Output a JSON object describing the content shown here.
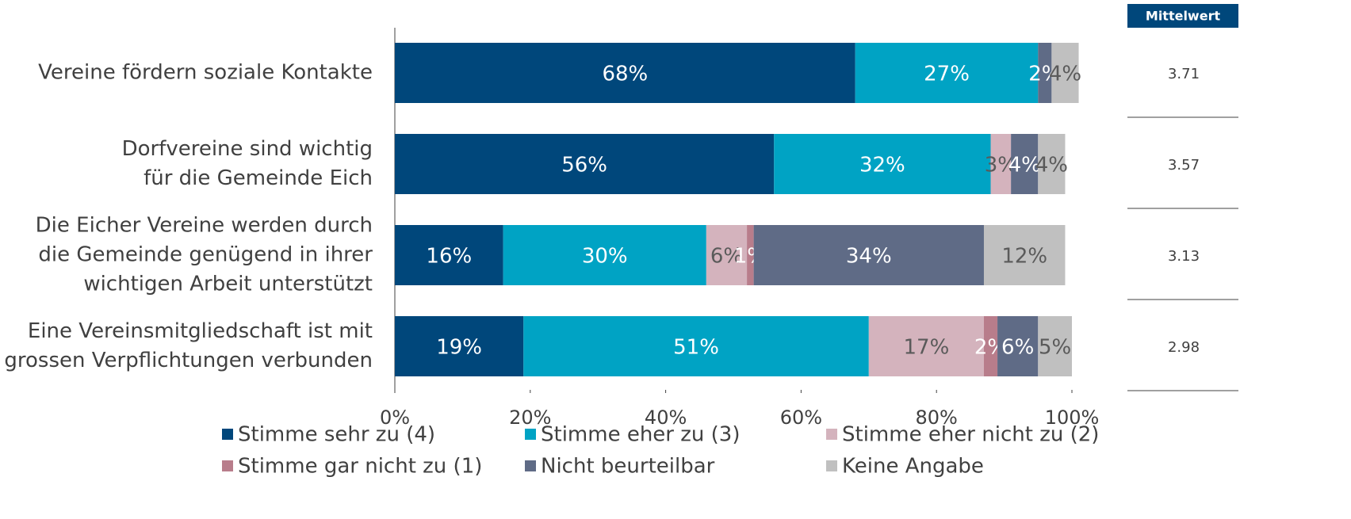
{
  "chart_data": {
    "type": "stacked-barh",
    "categories": [
      [
        "Vereine fördern soziale Kontakte"
      ],
      [
        "Dorfvereine sind wichtig",
        "für die Gemeinde Eich"
      ],
      [
        "Die Eicher Vereine werden durch",
        "die Gemeinde genügend in ihrer",
        "wichtigen Arbeit unterstützt"
      ],
      [
        "Eine Vereinsmitgliedschaft ist mit",
        "grossen Verpflichtungen verbunden"
      ]
    ],
    "series": [
      {
        "name": "Stimme sehr zu (4)",
        "color": "#00477b",
        "label_color": "#ffffff",
        "values": [
          68,
          56,
          16,
          19
        ],
        "value_labels": [
          "68%",
          "56%",
          "16%",
          "19%"
        ]
      },
      {
        "name": "Stimme eher zu (3)",
        "color": "#00a3c4",
        "label_color": "#ffffff",
        "values": [
          27,
          32,
          30,
          51
        ],
        "value_labels": [
          "27%",
          "32%",
          "30%",
          "51%"
        ]
      },
      {
        "name": "Stimme eher nicht zu (2)",
        "color": "#d4b3bd",
        "label_color": "#5a5a5a",
        "values": [
          null,
          3,
          6,
          17
        ],
        "value_labels": [
          null,
          "3%",
          "6%",
          "17%"
        ]
      },
      {
        "name": "Stimme gar nicht zu (1)",
        "color": "#b87d8b",
        "label_color": "#ffffff",
        "values": [
          null,
          null,
          1,
          2
        ],
        "value_labels": [
          null,
          null,
          "1%",
          "2%"
        ]
      },
      {
        "name": "Nicht beurteilbar",
        "color": "#5f6b86",
        "label_color": "#ffffff",
        "values": [
          2,
          4,
          34,
          6
        ],
        "value_labels": [
          "2%",
          "4%",
          "34%",
          "6%"
        ]
      },
      {
        "name": "Keine Angabe",
        "color": "#c0c0c0",
        "label_color": "#5a5a5a",
        "values": [
          4,
          4,
          12,
          5
        ],
        "value_labels": [
          "4%",
          "4%",
          "12%",
          "5%"
        ]
      }
    ],
    "xlim": [
      0,
      100
    ],
    "xticks": [
      {
        "value": 0,
        "label": "0%"
      },
      {
        "value": 20,
        "label": "20%"
      },
      {
        "value": 40,
        "label": "40%"
      },
      {
        "value": 60,
        "label": "60%"
      },
      {
        "value": 80,
        "label": "80%"
      },
      {
        "value": 100,
        "label": "100%"
      }
    ]
  },
  "table": {
    "header": "Mittelwert",
    "values": [
      3.71,
      3.57,
      3.13,
      2.98
    ]
  }
}
